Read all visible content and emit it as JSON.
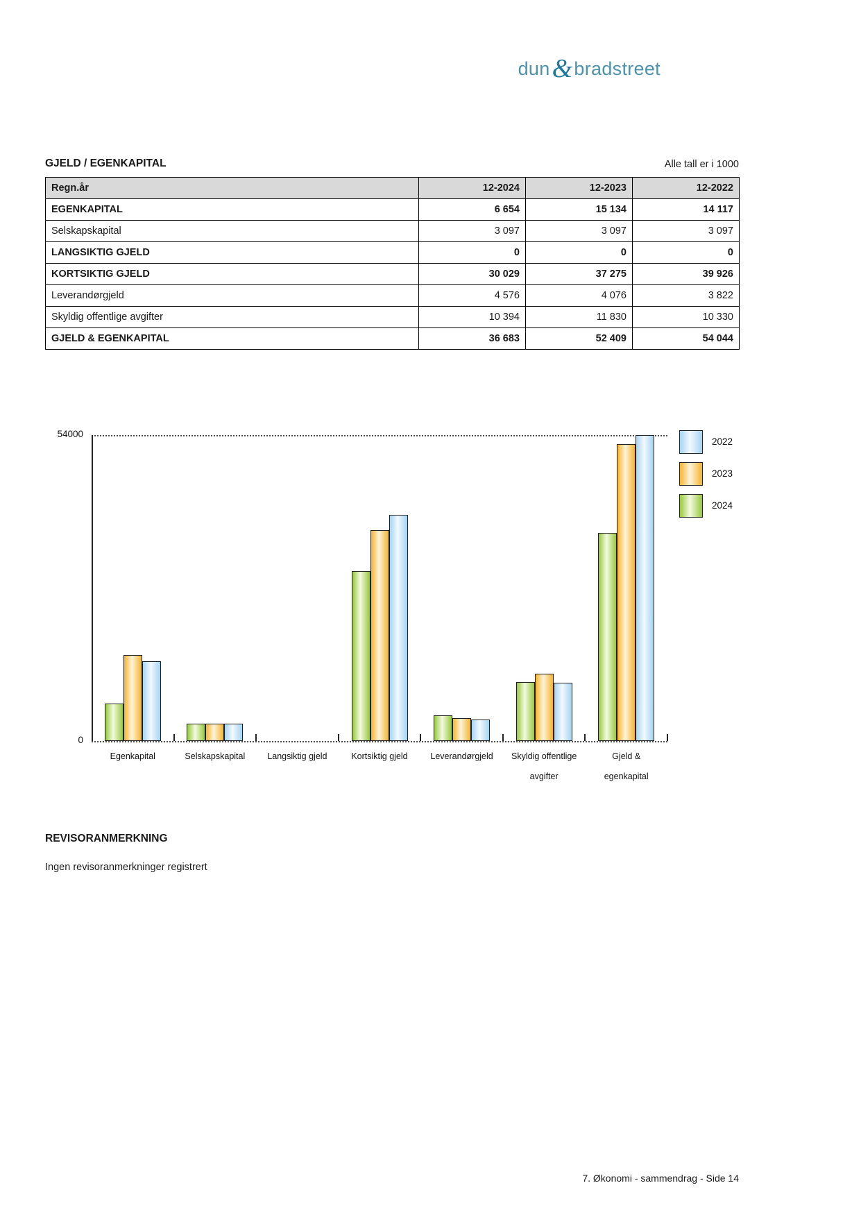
{
  "logo": {
    "dun": "dun",
    "amp": "&",
    "bradstreet": "bradstreet"
  },
  "section": {
    "title": "GJELD / EGENKAPITAL",
    "note": "Alle tall er i 1000"
  },
  "table": {
    "header": [
      "Regn.år",
      "12-2024",
      "12-2023",
      "12-2022"
    ],
    "rows": [
      {
        "label": "EGENKAPITAL",
        "bold": true,
        "values": [
          "6 654",
          "15 134",
          "14 117"
        ]
      },
      {
        "label": "Selskapskapital",
        "bold": false,
        "values": [
          "3 097",
          "3 097",
          "3 097"
        ]
      },
      {
        "label": "LANGSIKTIG GJELD",
        "bold": true,
        "values": [
          "0",
          "0",
          "0"
        ]
      },
      {
        "label": "KORTSIKTIG GJELD",
        "bold": true,
        "values": [
          "30 029",
          "37 275",
          "39 926"
        ]
      },
      {
        "label": "Leverandørgjeld",
        "bold": false,
        "values": [
          "4 576",
          "4 076",
          "3 822"
        ]
      },
      {
        "label": "Skyldig offentlige avgifter",
        "bold": false,
        "values": [
          "10 394",
          "11 830",
          "10 330"
        ]
      },
      {
        "label": "GJELD & EGENKAPITAL",
        "bold": true,
        "values": [
          "36 683",
          "52 409",
          "54 044"
        ]
      }
    ]
  },
  "chart_data": {
    "type": "bar",
    "categories": [
      "Egenkapital",
      "Selskapskapital",
      "Langsiktig gjeld",
      "Kortsiktig gjeld",
      "Leverandørgjeld",
      "Skyldig offentlige avgifter",
      "Gjeld & egenkapital"
    ],
    "category_lines": [
      [
        "Egenkapital"
      ],
      [
        "Selskapskapital"
      ],
      [
        "Langsiktig gjeld"
      ],
      [
        "Kortsiktig gjeld"
      ],
      [
        "Leverandørgjeld"
      ],
      [
        "Skyldig offentlige",
        "avgifter"
      ],
      [
        "Gjeld &",
        "egenkapital"
      ]
    ],
    "series": [
      {
        "name": "2024",
        "color": "#97c93d",
        "color_center": "#f3fae1",
        "values": [
          6654,
          3097,
          0,
          30029,
          4576,
          10394,
          36683
        ]
      },
      {
        "name": "2023",
        "color": "#f6b42f",
        "color_center": "#fdf3d8",
        "values": [
          15134,
          3097,
          0,
          37275,
          4076,
          11830,
          52409
        ]
      },
      {
        "name": "2022",
        "color": "#a5d4f2",
        "color_center": "#f2f9fe",
        "values": [
          14117,
          3097,
          0,
          39926,
          3822,
          10330,
          54044
        ]
      }
    ],
    "ylim": [
      0,
      54000
    ],
    "yticks": [
      {
        "value": 0,
        "label": "0"
      },
      {
        "value": 54000,
        "label": "54000"
      }
    ],
    "legend": [
      "2022",
      "2023",
      "2024"
    ],
    "legend_position": "right",
    "grid": "dotted reference line at 54000 and dotted baseline",
    "title": "",
    "xlabel": "",
    "ylabel": ""
  },
  "revisor": {
    "heading": "REVISORANMERKNING",
    "text": "Ingen revisoranmerkninger registrert"
  },
  "footer": {
    "text": "7. Økonomi - sammendrag - Side 14"
  }
}
